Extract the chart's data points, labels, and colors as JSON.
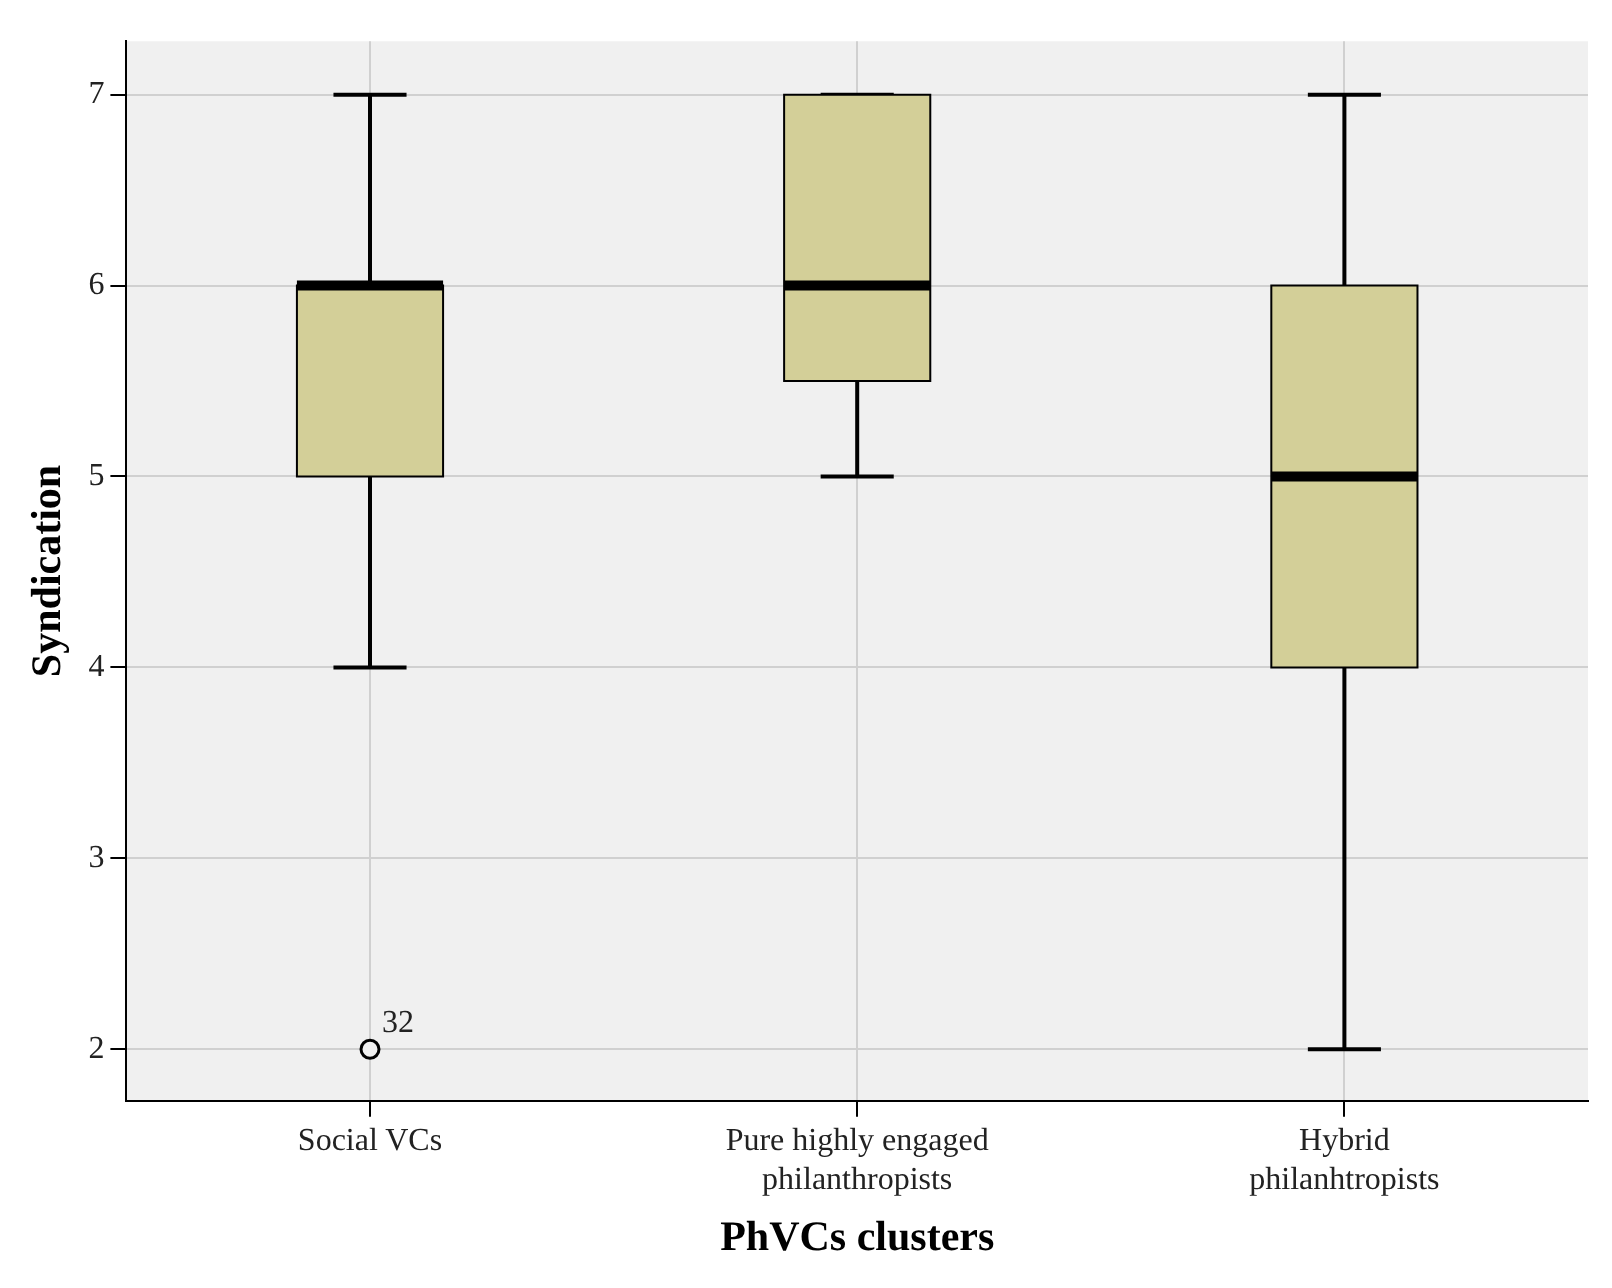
{
  "chart_data": {
    "type": "box",
    "xlabel": "PhVCs clusters",
    "ylabel": "Syndication",
    "categories": [
      "Social VCs",
      "Pure highly engaged philanthropists",
      "Hybrid philanhtropists"
    ],
    "color": "#d3cf98",
    "boxes": [
      {
        "low": 4,
        "q1": 5,
        "median": 6,
        "q3": 6,
        "high": 7,
        "outliers": [
          2
        ]
      },
      {
        "low": 5,
        "q1": 5.5,
        "median": 6,
        "q3": 7,
        "high": 7
      },
      {
        "low": 2,
        "q1": 4,
        "median": 5,
        "q3": 6,
        "high": 7
      }
    ],
    "annotations": [
      "32"
    ],
    "ylim": [
      1.73,
      7.28
    ],
    "yticks": [
      2,
      3,
      4,
      5,
      6,
      7
    ],
    "grid": true
  }
}
